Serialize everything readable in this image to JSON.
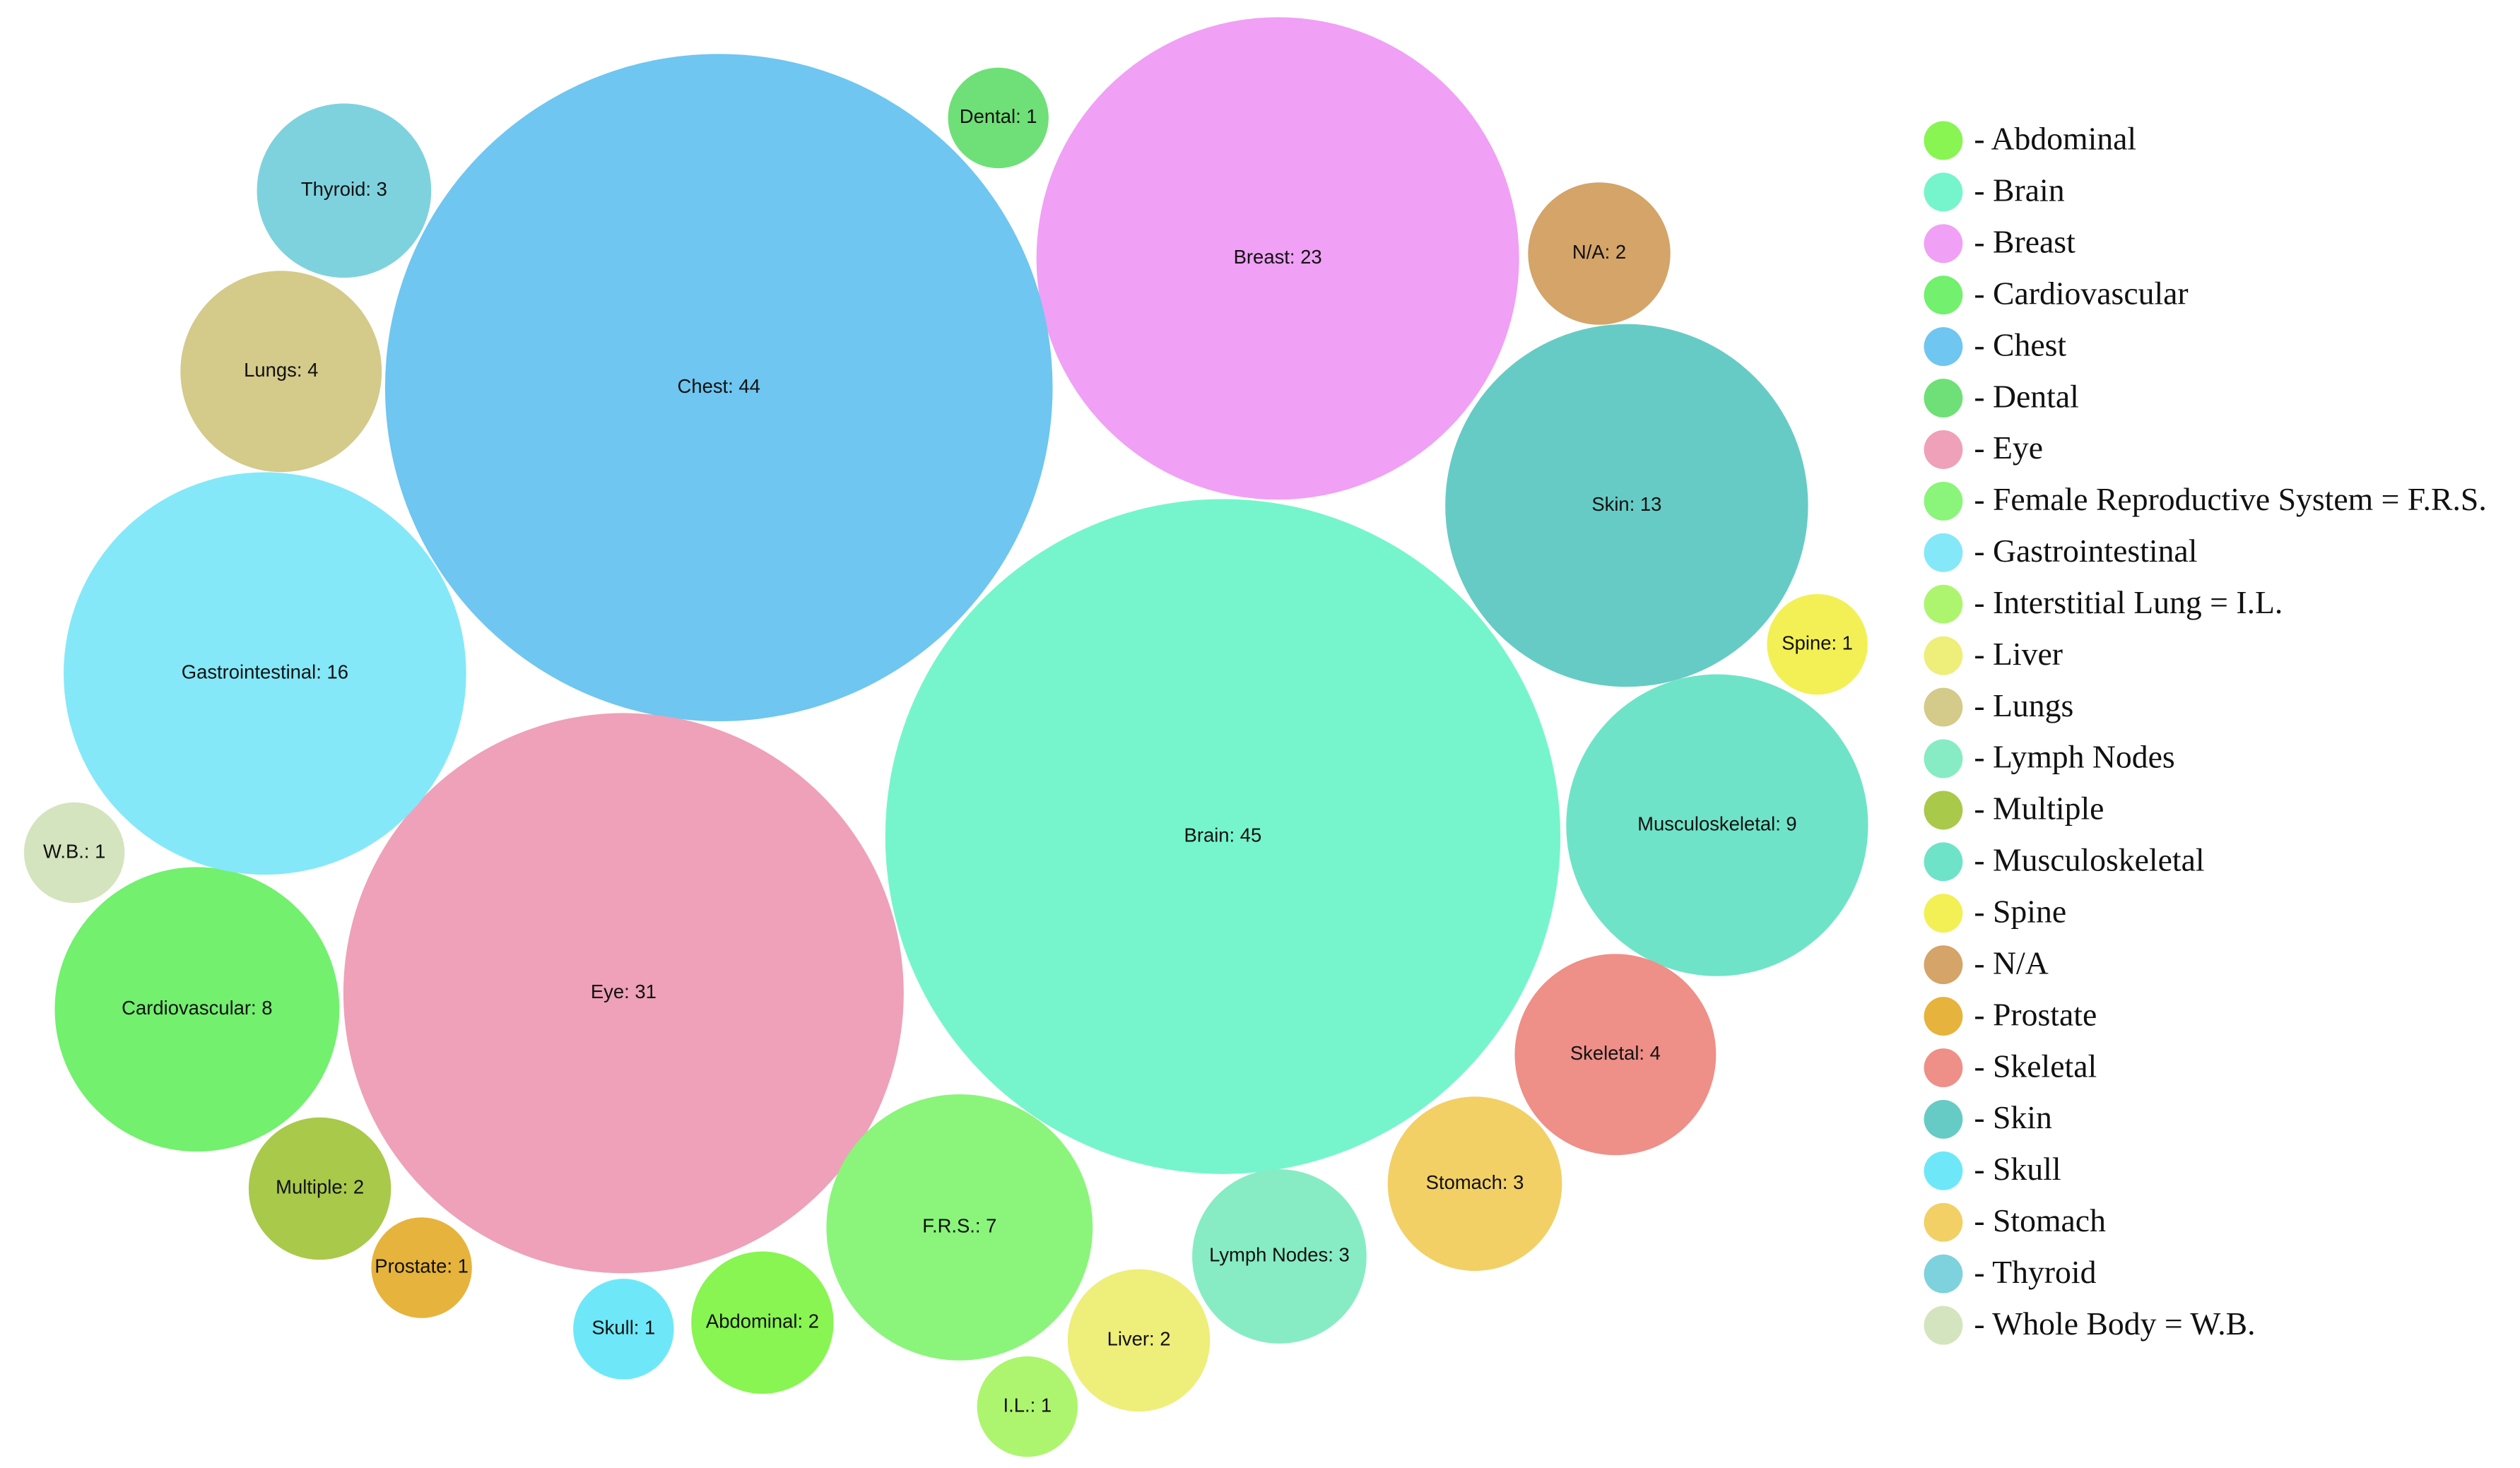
{
  "chart_data": {
    "type": "bubble",
    "legend": [
      "- Abdominal",
      "- Brain",
      "- Breast",
      "- Cardiovascular",
      "- Chest",
      "- Dental",
      "- Eye",
      "- Female Reproductive System = F.R.S.",
      "- Gastrointestinal",
      "- Interstitial Lung = I.L.",
      "- Liver",
      "- Lungs",
      "- Lymph Nodes",
      "- Multiple",
      "- Musculoskeletal",
      "- Spine",
      "- N/A",
      "- Prostate",
      "- Skeletal",
      "- Skin",
      "- Skull",
      "- Stomach",
      "- Thyroid",
      "- Whole Body = W.B."
    ],
    "values": [
      2,
      45,
      23,
      8,
      44,
      1,
      31,
      7,
      16,
      1,
      2,
      4,
      3,
      2,
      9,
      1,
      2,
      1,
      4,
      13,
      1,
      3,
      3,
      1
    ],
    "value_labels": [
      "Abdominal: 2",
      "Brain: 45",
      "Breast: 23",
      "Cardiovascular: 8",
      "Chest: 44",
      "Dental: 1",
      "Eye: 31",
      "F.R.S.: 7",
      "Gastrointestinal: 16",
      "I.L.: 1",
      "Liver: 2",
      "Lungs: 4",
      "Lymph Nodes: 3",
      "Multiple: 2",
      "Musculoskeletal: 9",
      "Spine: 1",
      "N/A: 2",
      "Prostate: 1",
      "Skeletal: 4",
      "Skin: 13",
      "Skull: 1",
      "Stomach: 3",
      "Thyroid: 3",
      "W.B.: 1"
    ],
    "colors": [
      "#88f552",
      "#76f5cc",
      "#f0a0f5",
      "#72f06e",
      "#6fc6f0",
      "#6ee077",
      "#eea1b9",
      "#8af57a",
      "#84e8f8",
      "#adf56e",
      "#eeee7a",
      "#d4ca8a",
      "#87ecc4",
      "#a9c94a",
      "#6fe3c8",
      "#f2f055",
      "#d4a468",
      "#e6b33c",
      "#ee8f88",
      "#67cbc5",
      "#6ee8f8",
      "#f2d066",
      "#7ed2dd",
      "#d4e4be"
    ]
  }
}
